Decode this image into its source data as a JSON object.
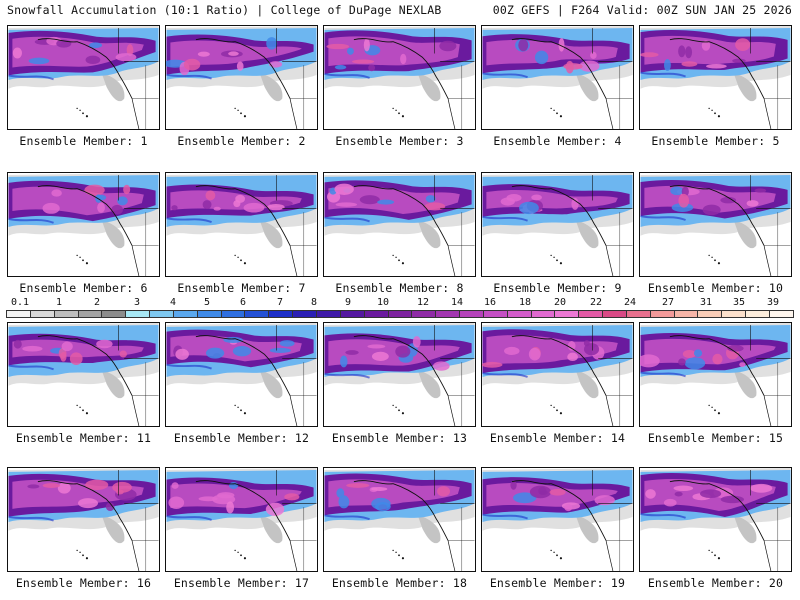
{
  "header": {
    "left": "Snowfall Accumulation (10:1 Ratio) | College of DuPage NEXLAB",
    "right": "00Z GEFS | F264 Valid: 00Z SUN JAN 25 2026"
  },
  "members": [
    "Ensemble Member: 1",
    "Ensemble Member: 2",
    "Ensemble Member: 3",
    "Ensemble Member: 4",
    "Ensemble Member: 5",
    "Ensemble Member: 6",
    "Ensemble Member: 7",
    "Ensemble Member: 8",
    "Ensemble Member: 9",
    "Ensemble Member: 10",
    "Ensemble Member: 11",
    "Ensemble Member: 12",
    "Ensemble Member: 13",
    "Ensemble Member: 14",
    "Ensemble Member: 15",
    "Ensemble Member: 16",
    "Ensemble Member: 17",
    "Ensemble Member: 18",
    "Ensemble Member: 19",
    "Ensemble Member: 20"
  ],
  "colorbar": {
    "labels": [
      "0.1",
      "1",
      "2",
      "3",
      "4",
      "5",
      "6",
      "7",
      "8",
      "9",
      "10",
      "12",
      "14",
      "16",
      "18",
      "20",
      "22",
      "24",
      "27",
      "31",
      "35",
      "39"
    ],
    "colors": [
      "#f2f2f2",
      "#d9d9d9",
      "#bdbdbd",
      "#a3a3a3",
      "#8c8c8c",
      "#a8e8f5",
      "#7ec8f0",
      "#5aa8ee",
      "#3f8ae8",
      "#2f6fe0",
      "#2451d6",
      "#1d2fc8",
      "#2b1fb5",
      "#3f1aa8",
      "#5418a0",
      "#6a1a9e",
      "#7d239f",
      "#8f2ba6",
      "#a236b0",
      "#b542ba",
      "#c44fc4",
      "#d35ccb",
      "#e06ad0",
      "#ec78d4",
      "#e35aa6",
      "#d94a86",
      "#e8708e",
      "#f29a9a",
      "#f6b5a8",
      "#f9cdb8",
      "#fbe0cc",
      "#fdeedd",
      "#fff6ee"
    ]
  },
  "palette": {
    "ocean": "#ffffff",
    "land": "#ffffff",
    "snow_gray": [
      "#e0e0e0",
      "#c4c4c4",
      "#9c9c9c"
    ],
    "snow_blue": [
      "#a8e8f5",
      "#6db6f0",
      "#3f8ae8",
      "#1d2fc8"
    ],
    "snow_purple": [
      "#3f1aa8",
      "#6a1a9e",
      "#8f2ba6",
      "#b542ba"
    ],
    "snow_pink": [
      "#d35ccb",
      "#e06ad0",
      "#ec78d4",
      "#e35aa6"
    ]
  }
}
